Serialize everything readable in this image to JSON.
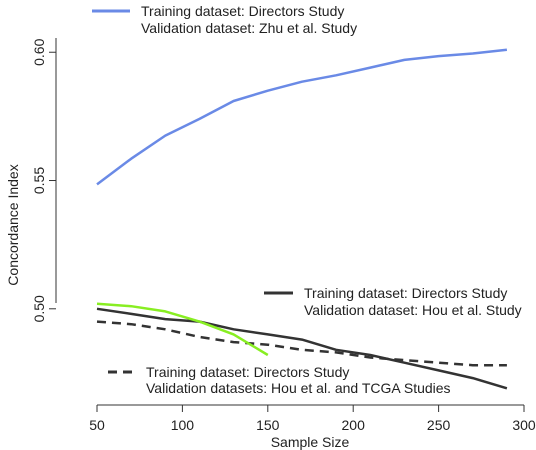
{
  "chart_data": {
    "type": "line",
    "title": "",
    "xlabel": "Sample Size",
    "ylabel": "Concordance Index",
    "xlim": [
      50,
      300
    ],
    "ylim": [
      0.4625,
      0.6075
    ],
    "x_ticks": [
      "50",
      "100",
      "150",
      "200",
      "250",
      "300"
    ],
    "x_tick_values": [
      50,
      100,
      150,
      200,
      250,
      300
    ],
    "y_ticks": [
      "0.50",
      "0.55",
      "0.60"
    ],
    "y_tick_values": [
      0.5,
      0.55,
      0.6
    ],
    "grid": false,
    "series": [
      {
        "id": "s1",
        "color": "#6a8ae6",
        "dash": "solid",
        "x": [
          50,
          70,
          90,
          110,
          130,
          150,
          170,
          190,
          210,
          230,
          250,
          270,
          290
        ],
        "y": [
          0.5485,
          0.5585,
          0.5675,
          0.574,
          0.581,
          0.585,
          0.5885,
          0.591,
          0.594,
          0.597,
          0.5985,
          0.5995,
          0.601
        ]
      },
      {
        "id": "s2",
        "color": "#333333",
        "dash": "solid",
        "x": [
          50,
          70,
          90,
          110,
          130,
          150,
          170,
          190,
          210,
          230,
          250,
          270,
          290
        ],
        "y": [
          0.5,
          0.498,
          0.496,
          0.495,
          0.492,
          0.49,
          0.488,
          0.484,
          0.482,
          0.479,
          0.476,
          0.473,
          0.469
        ]
      },
      {
        "id": "s3",
        "color": "#333333",
        "dash": "dashed",
        "x": [
          50,
          70,
          90,
          110,
          130,
          150,
          170,
          190,
          210,
          230,
          250,
          270,
          290
        ],
        "y": [
          0.495,
          0.494,
          0.492,
          0.489,
          0.487,
          0.486,
          0.484,
          0.483,
          0.481,
          0.48,
          0.479,
          0.478,
          0.478
        ]
      },
      {
        "id": "s4",
        "color": "#88ee22",
        "dash": "solid",
        "x": [
          50,
          70,
          90,
          110,
          130,
          150
        ],
        "y": [
          0.502,
          0.501,
          0.499,
          0.495,
          0.49,
          0.482
        ]
      }
    ],
    "legends": [
      {
        "series": "s1",
        "line1": "Training  dataset: Directors Study",
        "line2": "Validation dataset: Zhu et al. Study"
      },
      {
        "series": "s2",
        "line1": "Training  dataset: Directors Study",
        "line2": "Validation dataset: Hou et al. Study"
      },
      {
        "series": "s3",
        "line1": "Training  dataset: Directors Study",
        "line2": "Validation datasets: Hou et al. and TCGA Studies"
      }
    ]
  }
}
